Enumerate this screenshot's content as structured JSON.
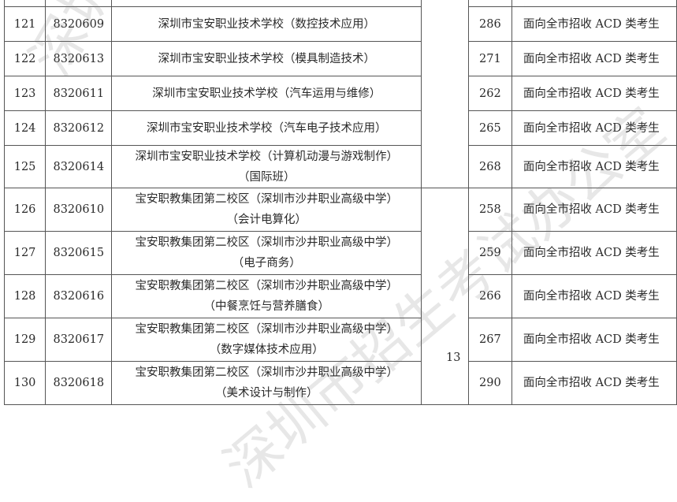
{
  "rows": [
    {
      "no": "121",
      "code": "8320609",
      "school": [
        "深圳市宝安职业技术学校（数控技术应用）"
      ],
      "score": "286",
      "note": "面向全市招收 ACD 类考生"
    },
    {
      "no": "122",
      "code": "8320613",
      "school": [
        "深圳市宝安职业技术学校（模具制造技术）"
      ],
      "score": "271",
      "note": "面向全市招收 ACD 类考生"
    },
    {
      "no": "123",
      "code": "8320611",
      "school": [
        "深圳市宝安职业技术学校（汽车运用与维修）"
      ],
      "score": "262",
      "note": "面向全市招收 ACD 类考生"
    },
    {
      "no": "124",
      "code": "8320612",
      "school": [
        "深圳市宝安职业技术学校（汽车电子技术应用）"
      ],
      "score": "265",
      "note": "面向全市招收 ACD 类考生"
    },
    {
      "no": "125",
      "code": "8320614",
      "school": [
        "深圳市宝安职业技术学校（计算机动漫与游戏制作）",
        "（国际班）"
      ],
      "score": "268",
      "note": "面向全市招收 ACD 类考生"
    },
    {
      "no": "126",
      "code": "8320610",
      "school": [
        "宝安职教集团第二校区（深圳市沙井职业高级中学）",
        "（会计电算化）"
      ],
      "score": "258",
      "note": "面向全市招收 ACD 类考生"
    },
    {
      "no": "127",
      "code": "8320615",
      "school": [
        "宝安职教集团第二校区（深圳市沙井职业高级中学）",
        "（电子商务）"
      ],
      "score": "259",
      "note": "面向全市招收 ACD 类考生"
    },
    {
      "no": "128",
      "code": "8320616",
      "school": [
        "宝安职教集团第二校区（深圳市沙井职业高级中学）",
        "（中餐烹饪与营养膳食）"
      ],
      "score": "266",
      "note": "面向全市招收 ACD 类考生"
    },
    {
      "no": "129",
      "code": "8320617",
      "school": [
        "宝安职教集团第二校区（深圳市沙井职业高级中学）",
        "（数字媒体技术应用）"
      ],
      "score": "267",
      "note": "面向全市招收 ACD 类考生"
    },
    {
      "no": "130",
      "code": "8320618",
      "school": [
        "宝安职教集团第二校区（深圳市沙井职业高级中学）",
        "（美术设计与制作）"
      ],
      "score": "290",
      "note": "面向全市招收 ACD 类考生"
    }
  ],
  "merged_value": "13",
  "watermark": "深圳市招生考试办公室"
}
